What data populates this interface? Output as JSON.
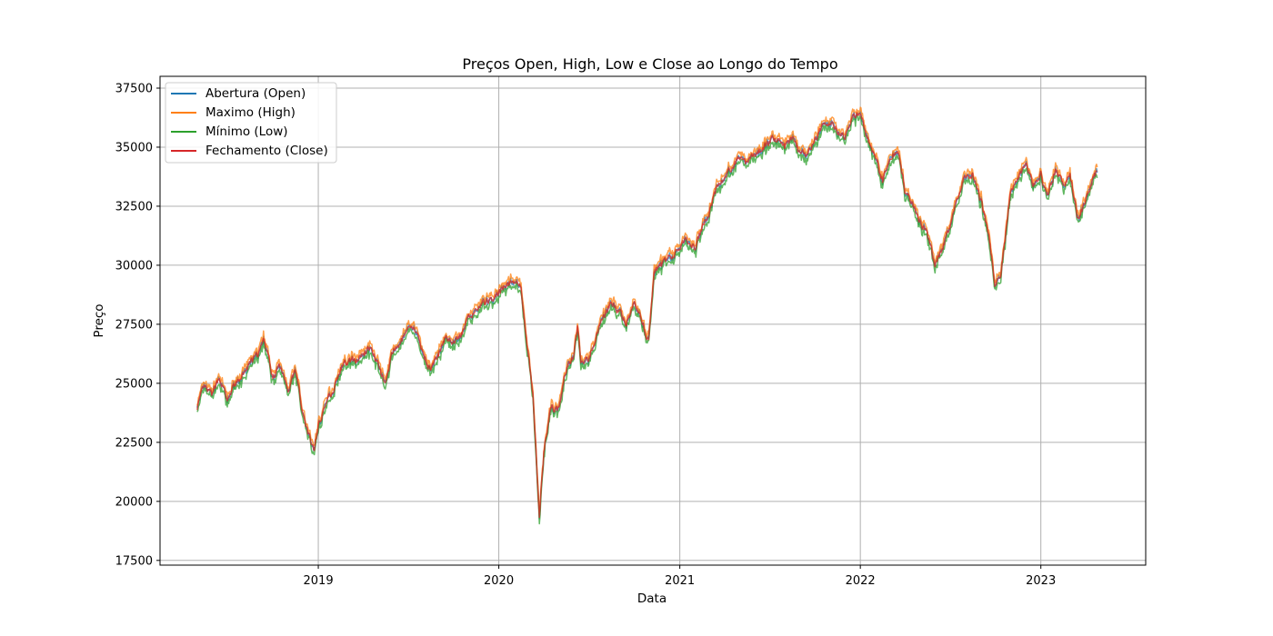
{
  "chart_data": {
    "type": "line",
    "title": "Preços Open, High, Low e Close ao Longo do Tempo",
    "xlabel": "Data",
    "ylabel": "Preço",
    "ylim": [
      17300,
      38000
    ],
    "xlim": [
      "2018-02-15",
      "2023-08-01"
    ],
    "yticks": [
      17500,
      20000,
      22500,
      25000,
      27500,
      30000,
      32500,
      35000,
      37500
    ],
    "xticks": [
      {
        "label": "2019",
        "date": "2019-01-01"
      },
      {
        "label": "2020",
        "date": "2020-01-01"
      },
      {
        "label": "2021",
        "date": "2021-01-01"
      },
      {
        "label": "2022",
        "date": "2022-01-01"
      },
      {
        "label": "2023",
        "date": "2023-01-01"
      }
    ],
    "grid": true,
    "legend_position": "top-left",
    "x": [
      "2018-05-01",
      "2018-05-15",
      "2018-06-01",
      "2018-06-15",
      "2018-07-01",
      "2018-07-15",
      "2018-08-01",
      "2018-08-15",
      "2018-09-01",
      "2018-09-15",
      "2018-10-01",
      "2018-10-15",
      "2018-11-01",
      "2018-11-15",
      "2018-12-01",
      "2018-12-15",
      "2018-12-24",
      "2019-01-01",
      "2019-01-15",
      "2019-02-01",
      "2019-02-15",
      "2019-03-01",
      "2019-03-15",
      "2019-04-01",
      "2019-04-15",
      "2019-05-01",
      "2019-05-15",
      "2019-06-01",
      "2019-06-15",
      "2019-07-01",
      "2019-07-15",
      "2019-08-01",
      "2019-08-15",
      "2019-09-01",
      "2019-09-15",
      "2019-10-01",
      "2019-10-15",
      "2019-11-01",
      "2019-11-15",
      "2019-12-01",
      "2019-12-15",
      "2020-01-01",
      "2020-01-15",
      "2020-02-01",
      "2020-02-15",
      "2020-02-25",
      "2020-03-01",
      "2020-03-10",
      "2020-03-16",
      "2020-03-23",
      "2020-04-01",
      "2020-04-15",
      "2020-05-01",
      "2020-05-15",
      "2020-06-01",
      "2020-06-08",
      "2020-06-15",
      "2020-07-01",
      "2020-07-15",
      "2020-08-01",
      "2020-08-15",
      "2020-09-01",
      "2020-09-15",
      "2020-10-01",
      "2020-10-15",
      "2020-10-30",
      "2020-11-10",
      "2020-11-25",
      "2020-12-10",
      "2021-01-01",
      "2021-01-15",
      "2021-02-01",
      "2021-02-15",
      "2021-03-01",
      "2021-03-15",
      "2021-04-01",
      "2021-04-15",
      "2021-05-01",
      "2021-05-15",
      "2021-06-01",
      "2021-06-15",
      "2021-07-01",
      "2021-07-15",
      "2021-08-01",
      "2021-08-15",
      "2021-09-01",
      "2021-09-15",
      "2021-10-01",
      "2021-10-15",
      "2021-11-01",
      "2021-11-15",
      "2021-12-01",
      "2021-12-15",
      "2022-01-01",
      "2022-01-15",
      "2022-02-01",
      "2022-02-15",
      "2022-03-08",
      "2022-03-20",
      "2022-04-01",
      "2022-04-15",
      "2022-05-01",
      "2022-05-15",
      "2022-06-01",
      "2022-06-17",
      "2022-07-01",
      "2022-07-15",
      "2022-08-01",
      "2022-08-16",
      "2022-09-01",
      "2022-09-15",
      "2022-09-30",
      "2022-10-12",
      "2022-10-25",
      "2022-11-01",
      "2022-11-15",
      "2022-12-01",
      "2022-12-15",
      "2023-01-01",
      "2023-01-15",
      "2023-02-01",
      "2023-02-15",
      "2023-03-01",
      "2023-03-15",
      "2023-03-31",
      "2023-04-15",
      "2023-04-25"
    ],
    "close": [
      24000,
      24800,
      24500,
      25300,
      24200,
      24900,
      25300,
      25800,
      26200,
      26800,
      25200,
      25700,
      24800,
      25500,
      23800,
      22600,
      22200,
      23200,
      24100,
      24800,
      25600,
      25900,
      26000,
      26200,
      26500,
      26000,
      25000,
      26300,
      26700,
      27200,
      27300,
      26300,
      25600,
      26200,
      27000,
      26800,
      27000,
      27700,
      28100,
      28400,
      28500,
      28800,
      29100,
      29400,
      29000,
      27000,
      26300,
      24500,
      22300,
      19200,
      22100,
      24000,
      23900,
      25500,
      26200,
      27500,
      25800,
      26100,
      27000,
      27800,
      28400,
      28000,
      27500,
      28400,
      27800,
      26800,
      29600,
      30000,
      30300,
      30700,
      31100,
      30800,
      31600,
      32200,
      33200,
      33700,
      34100,
      34600,
      34300,
      34700,
      34900,
      35200,
      35400,
      35000,
      35400,
      34700,
      34700,
      35300,
      35800,
      36100,
      35700,
      35500,
      36200,
      36500,
      35300,
      34600,
      33600,
      34700,
      34800,
      33200,
      32800,
      31900,
      31400,
      30000,
      30800,
      31700,
      32700,
      33800,
      33800,
      32800,
      31600,
      29300,
      29600,
      31800,
      33200,
      33700,
      34300,
      33400,
      33800,
      33000,
      34100,
      33300,
      33900,
      32000,
      32600,
      33600,
      34000
    ]
  }
}
